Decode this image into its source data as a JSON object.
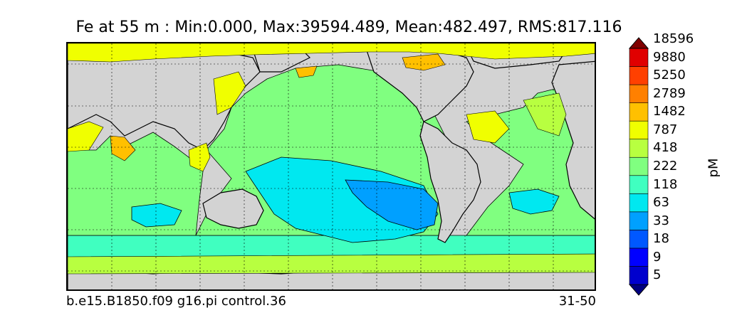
{
  "title": "Fe at 55 m : Min:0.000, Max:39594.489, Mean:482.497, RMS:817.116",
  "case_name": "b.e15.B1850.f09 g16.pi control.36",
  "years": "31-50",
  "colorbar": {
    "unit": "pM",
    "levels": [
      "5",
      "9",
      "18",
      "33",
      "63",
      "118",
      "222",
      "418",
      "787",
      "1482",
      "2789",
      "5250",
      "9880",
      "18596"
    ],
    "colors": [
      "#000080",
      "#0000cd",
      "#0000ff",
      "#0058ff",
      "#00a0ff",
      "#00e8f0",
      "#40ffc0",
      "#80ff80",
      "#b8ff40",
      "#f0ff00",
      "#ffc000",
      "#ff8000",
      "#ff4000",
      "#e00000",
      "#800000"
    ]
  },
  "map_colors": {
    "land": "#d3d3d3",
    "missing": "#ffffff"
  }
}
